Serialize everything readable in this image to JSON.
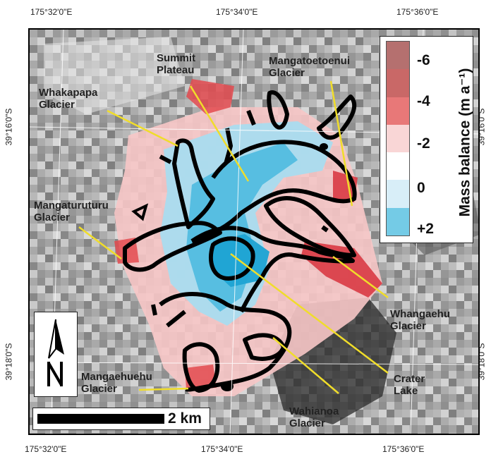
{
  "coordinates": {
    "top": [
      "175°32'0\"E",
      "175°34'0\"E",
      "175°36'0\"E"
    ],
    "bottom": [
      "175°32'0\"E",
      "175°34'0\"E",
      "175°36'0\"E"
    ],
    "left": [
      "39°16'0\"S",
      "39°18'0\"S"
    ],
    "right": [
      "39°16'0\"S",
      "39°18'0\"S"
    ]
  },
  "glaciers": {
    "summit": [
      "Summit",
      "Plateau"
    ],
    "mangatoetoenui": [
      "Mangatoetoenui",
      "Glacier"
    ],
    "whakapapa": [
      "Whakapapa",
      "Glacier"
    ],
    "mangaturuturu": [
      "Mangaturuturu",
      "Glacier"
    ],
    "whangaehu": [
      "Whangaehu",
      "Glacier"
    ],
    "crater": [
      "Crater",
      "Lake"
    ],
    "mangaehuehu": [
      "Mangaehuehu",
      "Glacier"
    ],
    "wahianoa": [
      "Wahianoa",
      "Glacier"
    ]
  },
  "legend": {
    "title": "Mass balance (m a⁻¹)",
    "ticks": [
      "-6",
      "-4",
      "-2",
      "0",
      "+2"
    ],
    "colors": [
      "#b5706f",
      "#c96867",
      "#e87878",
      "#f9d6d6",
      "#ffffff",
      "#d8eef8",
      "#74cbe6"
    ]
  },
  "scale": {
    "label": "2 km"
  },
  "colors": {
    "ice_gain": "#52bde0",
    "ice_loss": "#e0404a",
    "outline": "#000000",
    "leader": "#f0dd2a"
  }
}
